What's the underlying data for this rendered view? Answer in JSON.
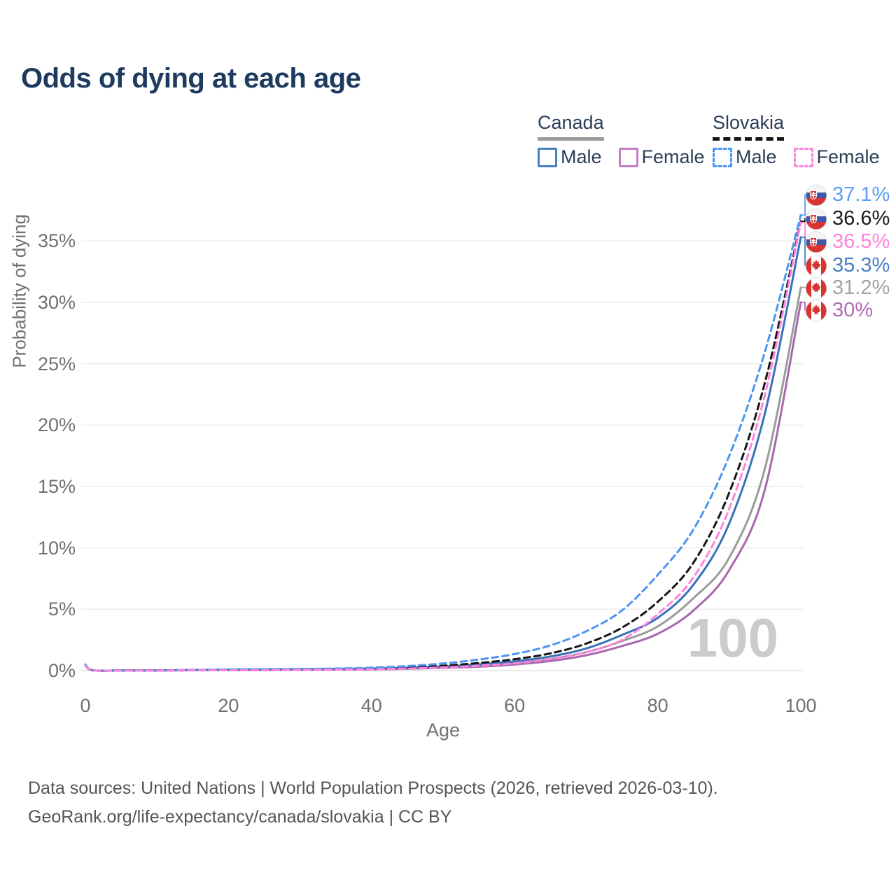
{
  "title": "Odds of dying at each age",
  "watermark": "100",
  "legend": {
    "groups": [
      {
        "name": "Canada",
        "underline_style": "solid",
        "underline_color": "#9b9b9b",
        "items": [
          {
            "label": "Male",
            "box_color": "#4a7fc4",
            "dashed": false
          },
          {
            "label": "Female",
            "box_color": "#c17fc4",
            "dashed": false
          }
        ]
      },
      {
        "name": "Slovakia",
        "underline_style": "dashed",
        "underline_color": "#161616",
        "items": [
          {
            "label": "Male",
            "box_color": "#4d95f2",
            "dashed": true
          },
          {
            "label": "Female",
            "box_color": "#ff85e0",
            "dashed": true
          }
        ]
      }
    ]
  },
  "axes": {
    "x": {
      "label": "Age",
      "tick_values": [
        0,
        20,
        40,
        60,
        80,
        100
      ],
      "range": [
        0,
        100
      ]
    },
    "y": {
      "label": "Probability of dying",
      "tick_labels": [
        "0%",
        "5%",
        "10%",
        "15%",
        "20%",
        "25%",
        "30%",
        "35%"
      ],
      "tick_values": [
        0,
        5,
        10,
        15,
        20,
        25,
        30,
        35
      ],
      "range": [
        0,
        39
      ]
    }
  },
  "chart_data": {
    "type": "line",
    "title": "Odds of dying at each age",
    "xlabel": "Age",
    "ylabel": "Probability of dying",
    "x_range": [
      0,
      100
    ],
    "y_range_percent": [
      0,
      39
    ],
    "grid": "horizontal-only",
    "legend_position": "top-right",
    "ages": [
      0,
      1,
      5,
      10,
      15,
      20,
      25,
      30,
      35,
      40,
      45,
      50,
      55,
      60,
      65,
      70,
      75,
      80,
      85,
      90,
      95,
      100
    ],
    "series": [
      {
        "country": "Slovakia",
        "sex": "Male",
        "style": "dashed",
        "color": "#4d95f2",
        "label_color": "#5b9cf6",
        "end_label": "37.1%",
        "flag": "slovakia",
        "values_percent": [
          0.5,
          0.03,
          0.01,
          0.01,
          0.04,
          0.09,
          0.11,
          0.13,
          0.17,
          0.24,
          0.37,
          0.58,
          0.9,
          1.35,
          2.05,
          3.2,
          4.9,
          7.8,
          11.5,
          17.5,
          26.0,
          37.1
        ]
      },
      {
        "country": "Slovakia",
        "sex": "All",
        "style": "dashed",
        "color": "#161616",
        "label_color": "#1a1a1a",
        "end_label": "36.6%",
        "flag": "slovakia",
        "values_percent": [
          0.45,
          0.03,
          0.01,
          0.01,
          0.03,
          0.06,
          0.08,
          0.1,
          0.13,
          0.17,
          0.26,
          0.4,
          0.62,
          0.93,
          1.4,
          2.2,
          3.5,
          5.6,
          8.8,
          14.5,
          23.5,
          36.6
        ]
      },
      {
        "country": "Slovakia",
        "sex": "Female",
        "style": "dashed",
        "color": "#ff82df",
        "label_color": "#ff82df",
        "end_label": "36.5%",
        "flag": "slovakia",
        "values_percent": [
          0.4,
          0.02,
          0.01,
          0.01,
          0.02,
          0.03,
          0.04,
          0.06,
          0.08,
          0.11,
          0.17,
          0.26,
          0.4,
          0.6,
          0.95,
          1.5,
          2.5,
          4.6,
          7.6,
          13.2,
          22.5,
          36.5
        ]
      },
      {
        "country": "Canada",
        "sex": "Male",
        "style": "solid",
        "color": "#3a72ba",
        "label_color": "#4a7fc4",
        "end_label": "35.3%",
        "flag": "canada",
        "values_percent": [
          0.45,
          0.03,
          0.01,
          0.01,
          0.05,
          0.08,
          0.1,
          0.12,
          0.14,
          0.17,
          0.23,
          0.33,
          0.5,
          0.75,
          1.15,
          1.8,
          2.9,
          4.3,
          7.0,
          12.0,
          21.0,
          35.3
        ]
      },
      {
        "country": "Canada",
        "sex": "All",
        "style": "solid",
        "color": "#9b9b9b",
        "label_color": "#a3a3a3",
        "end_label": "31.2%",
        "flag": "canada",
        "values_percent": [
          0.42,
          0.02,
          0.01,
          0.01,
          0.04,
          0.06,
          0.08,
          0.09,
          0.11,
          0.14,
          0.19,
          0.28,
          0.41,
          0.62,
          0.95,
          1.5,
          2.4,
          3.6,
          5.9,
          9.2,
          16.5,
          31.2
        ]
      },
      {
        "country": "Canada",
        "sex": "Female",
        "style": "solid",
        "color": "#a867ae",
        "label_color": "#b06ab5",
        "end_label": "30%",
        "flag": "canada",
        "values_percent": [
          0.4,
          0.02,
          0.01,
          0.01,
          0.03,
          0.04,
          0.05,
          0.06,
          0.08,
          0.1,
          0.15,
          0.22,
          0.32,
          0.5,
          0.78,
          1.25,
          2.0,
          3.0,
          4.9,
          8.2,
          14.8,
          30.0
        ]
      }
    ]
  },
  "footer": {
    "line1": "Data sources: United Nations | World Population Prospects (2026, retrieved 2026-03-10).",
    "line2": "GeoRank.org/life-expectancy/canada/slovakia | CC BY"
  }
}
